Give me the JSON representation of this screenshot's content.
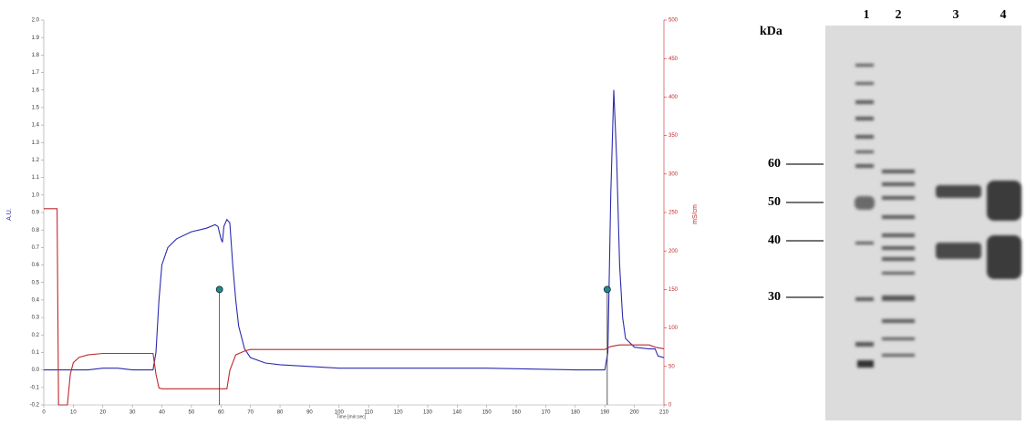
{
  "chart_data": {
    "type": "line",
    "x_label": "Time [min:sec]",
    "y_label": "A.U.",
    "y2_label": "mS/cm",
    "xlim": [
      0,
      210
    ],
    "xticks": [
      0,
      10,
      20,
      30,
      40,
      50,
      60,
      70,
      80,
      90,
      100,
      110,
      120,
      130,
      140,
      150,
      160,
      170,
      180,
      190,
      200,
      210
    ],
    "ylim": [
      -0.2,
      2.0
    ],
    "yticks": [
      -0.2,
      -0.1,
      {
        "value": 0,
        "label": "0.0"
      },
      0.1,
      0.2,
      0.3,
      0.4,
      0.5,
      0.6,
      0.7,
      0.8,
      0.9,
      {
        "value": 1,
        "label": "1.0"
      },
      1.1,
      1.2,
      1.3,
      1.4,
      1.5,
      1.6,
      1.7,
      1.8,
      1.9,
      {
        "value": 2,
        "label": "2.0"
      }
    ],
    "y2lim": [
      0,
      500
    ],
    "y2ticks": [
      0,
      50,
      100,
      150,
      200,
      250,
      300,
      350,
      400,
      450,
      500
    ],
    "series": [
      {
        "color": "#2b2bb0",
        "x": [
          0,
          5,
          10,
          15,
          20,
          25,
          30,
          35,
          37,
          38,
          39,
          40,
          42,
          45,
          50,
          55,
          58,
          59,
          60,
          60.5,
          61,
          62,
          63,
          64,
          65,
          66,
          68,
          70,
          75,
          80,
          90,
          100,
          120,
          150,
          180,
          190,
          191,
          192,
          193,
          194,
          195,
          196,
          197,
          200,
          205,
          207,
          208,
          210
        ],
        "values": [
          0,
          0,
          0,
          0,
          0.01,
          0.01,
          0,
          0,
          0,
          0.1,
          0.4,
          0.6,
          0.7,
          0.75,
          0.79,
          0.81,
          0.83,
          0.82,
          0.75,
          0.73,
          0.82,
          0.86,
          0.84,
          0.6,
          0.4,
          0.25,
          0.12,
          0.07,
          0.04,
          0.03,
          0.02,
          0.01,
          0.01,
          0.01,
          0,
          0,
          0.1,
          1.0,
          1.6,
          1.2,
          0.6,
          0.3,
          0.18,
          0.13,
          0.12,
          0.12,
          0.08,
          0.07
        ]
      },
      {
        "color": "#c0282d",
        "axis": "y2",
        "x": [
          0,
          4.5,
          5,
          8,
          9,
          10,
          12,
          15,
          20,
          37,
          38,
          39,
          40,
          62,
          63,
          65,
          68,
          70,
          100,
          190,
          192,
          195,
          205,
          207,
          210
        ],
        "values": [
          255,
          255,
          0,
          0,
          40,
          55,
          62,
          65,
          67,
          67,
          40,
          22,
          21,
          21,
          45,
          65,
          70,
          72,
          72,
          72,
          76,
          78,
          78,
          75,
          73
        ]
      }
    ],
    "markers": [
      {
        "x": 59.5,
        "y": 0.46
      },
      {
        "x": 190.8,
        "y": 0.46
      }
    ]
  },
  "gel": {
    "unit": "kDa",
    "lanes": [
      "1",
      "2",
      "3",
      "4"
    ],
    "markers": [
      60,
      50,
      40,
      30
    ]
  }
}
